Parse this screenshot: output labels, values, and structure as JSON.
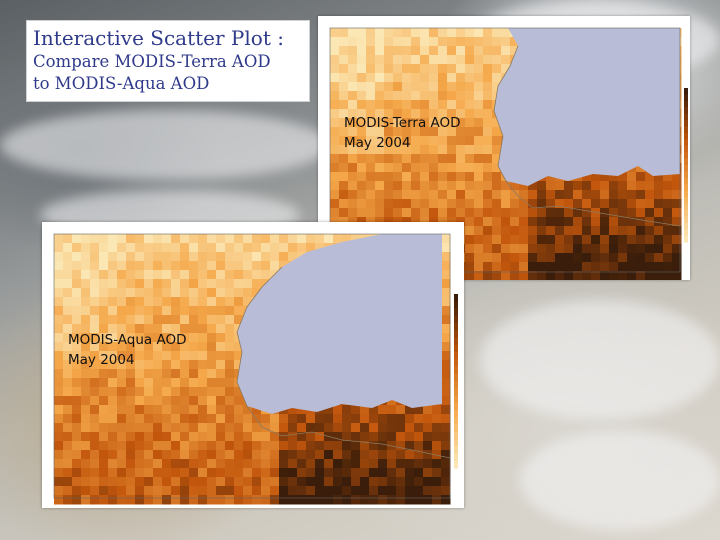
{
  "title_box": {
    "line1": "Interactive Scatter Plot :",
    "line2": "Compare MODIS-Terra AOD",
    "line3": "to MODIS-Aqua AOD"
  },
  "panels": {
    "terra": {
      "label_line1": "MODIS-Terra AOD",
      "label_line2": "May 2004"
    },
    "aqua": {
      "label_line1": "MODIS-Aqua AOD",
      "label_line2": "May 2004"
    }
  },
  "colors": {
    "title_text": "#2f3a8a",
    "land_mask": "#b9bcd6",
    "aod_low": "#fbe7b4",
    "aod_mid": "#f5a84a",
    "aod_high": "#c2560c",
    "aod_max": "#3a1d0a"
  }
}
